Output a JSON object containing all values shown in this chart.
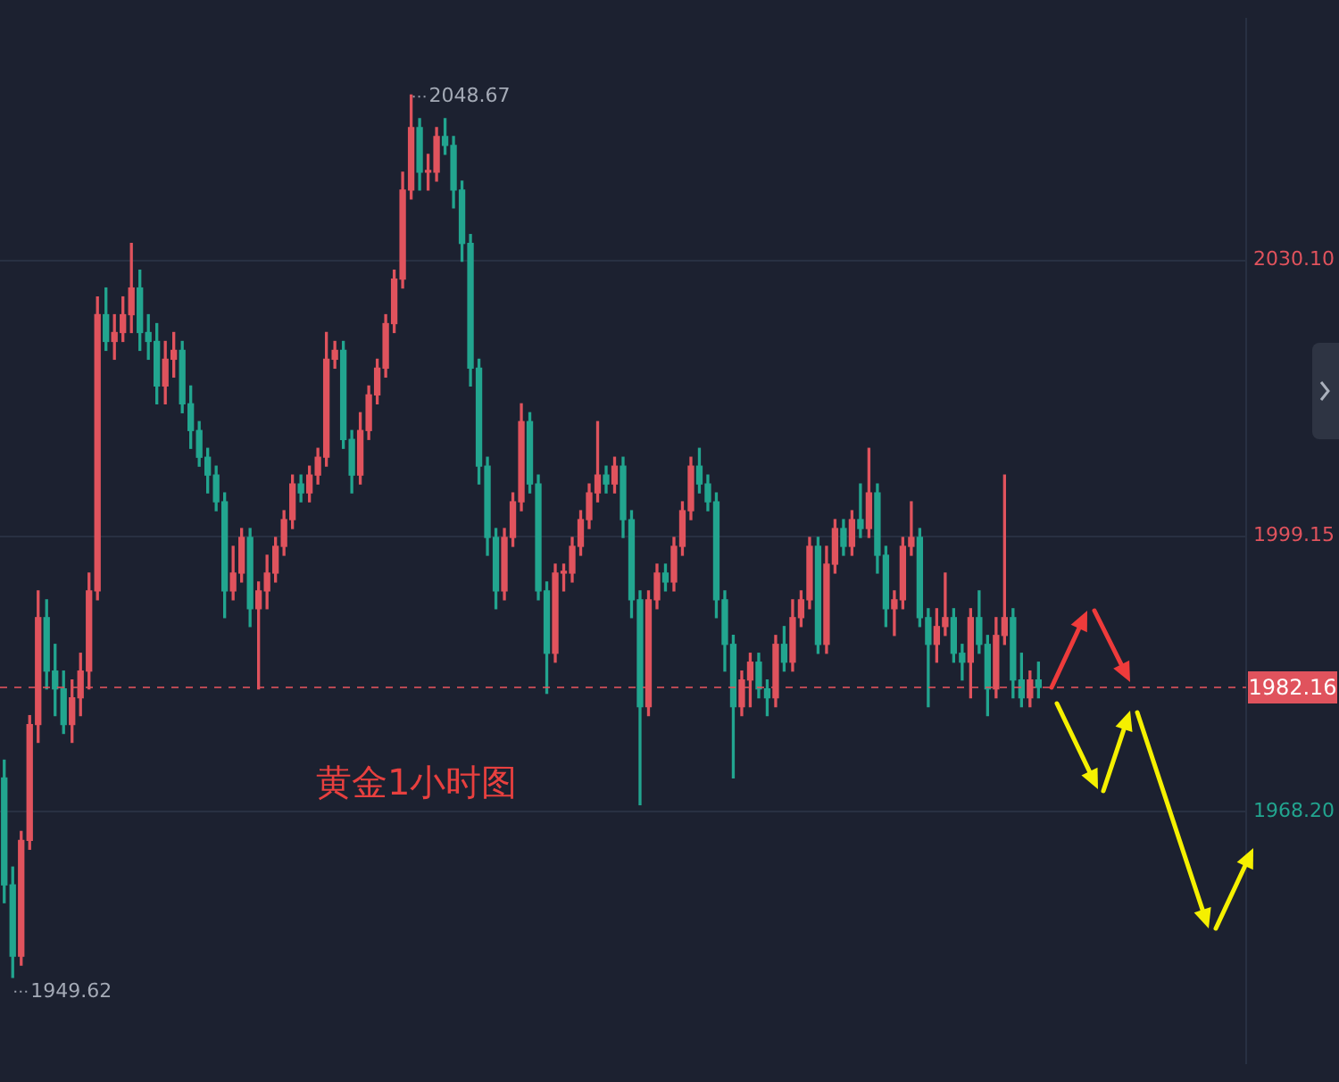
{
  "chart_data": {
    "type": "candlestick",
    "categories": [
      null,
      null,
      null,
      null,
      null,
      null,
      null,
      null,
      null,
      null,
      null,
      null,
      null,
      null,
      null,
      null,
      null,
      null,
      null,
      null,
      null,
      null,
      null,
      null,
      null,
      null,
      null,
      null,
      null,
      null,
      null,
      null,
      null,
      null,
      null,
      null,
      null,
      null,
      null,
      null,
      null,
      null,
      null,
      null,
      null,
      null,
      null,
      null,
      null,
      null,
      null,
      null,
      null,
      null,
      null,
      null,
      null,
      null,
      null,
      null,
      null,
      null,
      null,
      null,
      null,
      null,
      null,
      null,
      null,
      null,
      null,
      null,
      null,
      null,
      null,
      null,
      null,
      null,
      null,
      null,
      null,
      null,
      null,
      null,
      null,
      null,
      null,
      null,
      null,
      null,
      null,
      null,
      null,
      null,
      null,
      null,
      null,
      null,
      null,
      null,
      null,
      null,
      null,
      null,
      null,
      null,
      null,
      null,
      null,
      null,
      null,
      null,
      null,
      null,
      null,
      null,
      null,
      null,
      null,
      null,
      null,
      null,
      null,
      null,
      null,
      null,
      null,
      null,
      null,
      null,
      null,
      null,
      null,
      null,
      null,
      null,
      null,
      null,
      null,
      null,
      null,
      null,
      null,
      null,
      null,
      null,
      null
    ],
    "ohlc": [
      [
        1972,
        1974,
        1958,
        1960
      ],
      [
        1960,
        1962,
        1949.62,
        1952
      ],
      [
        1952,
        1966,
        1951,
        1965
      ],
      [
        1965,
        1979,
        1964,
        1978
      ],
      [
        1978,
        1993,
        1976,
        1990
      ],
      [
        1990,
        1992,
        1982,
        1984
      ],
      [
        1984,
        1987,
        1979,
        1982
      ],
      [
        1982,
        1984,
        1977,
        1978
      ],
      [
        1978,
        1983,
        1976,
        1981
      ],
      [
        1981,
        1986,
        1979,
        1984
      ],
      [
        1984,
        1995,
        1982,
        1993
      ],
      [
        1993,
        2026,
        1992,
        2024
      ],
      [
        2024,
        2027,
        2020,
        2021
      ],
      [
        2021,
        2024,
        2019,
        2022
      ],
      [
        2022,
        2026,
        2021,
        2024
      ],
      [
        2024,
        2032,
        2022,
        2027
      ],
      [
        2027,
        2029,
        2020,
        2022
      ],
      [
        2022,
        2024,
        2019,
        2021
      ],
      [
        2021,
        2023,
        2014,
        2016
      ],
      [
        2016,
        2021,
        2014,
        2019
      ],
      [
        2019,
        2022,
        2017,
        2020
      ],
      [
        2020,
        2021,
        2013,
        2014
      ],
      [
        2014,
        2016,
        2009,
        2011
      ],
      [
        2011,
        2012,
        2007,
        2008
      ],
      [
        2008,
        2009,
        2004,
        2006
      ],
      [
        2006,
        2007,
        2002,
        2003
      ],
      [
        2003,
        2004,
        1990,
        1993
      ],
      [
        1993,
        1998,
        1992,
        1995
      ],
      [
        1995,
        2000,
        1994,
        1999
      ],
      [
        1999,
        2000,
        1989,
        1991
      ],
      [
        1991,
        1994,
        1982,
        1993
      ],
      [
        1993,
        1997,
        1991,
        1995
      ],
      [
        1995,
        1999,
        1994,
        1998
      ],
      [
        1998,
        2002,
        1997,
        2001
      ],
      [
        2001,
        2006,
        2000,
        2005
      ],
      [
        2005,
        2006,
        2003,
        2004
      ],
      [
        2004,
        2007,
        2003,
        2006
      ],
      [
        2006,
        2009,
        2005,
        2008
      ],
      [
        2008,
        2022,
        2007,
        2019
      ],
      [
        2019,
        2021,
        2018,
        2020
      ],
      [
        2020,
        2021,
        2009,
        2010
      ],
      [
        2010,
        2011,
        2004,
        2006
      ],
      [
        2006,
        2013,
        2005,
        2011
      ],
      [
        2011,
        2016,
        2010,
        2015
      ],
      [
        2015,
        2019,
        2014,
        2018
      ],
      [
        2018,
        2024,
        2017,
        2023
      ],
      [
        2023,
        2029,
        2022,
        2028
      ],
      [
        2028,
        2040,
        2027,
        2038
      ],
      [
        2038,
        2048.67,
        2037,
        2045
      ],
      [
        2045,
        2046,
        2038,
        2040
      ],
      [
        2040,
        2042,
        2038,
        2040
      ],
      [
        2040,
        2045,
        2039,
        2044
      ],
      [
        2044,
        2046,
        2042,
        2043
      ],
      [
        2043,
        2044,
        2036,
        2038
      ],
      [
        2038,
        2039,
        2030,
        2032
      ],
      [
        2032,
        2033,
        2016,
        2018
      ],
      [
        2018,
        2019,
        2005,
        2007
      ],
      [
        2007,
        2008,
        1997,
        1999
      ],
      [
        1999,
        2000,
        1991,
        1993
      ],
      [
        1993,
        2000,
        1992,
        1999
      ],
      [
        1999,
        2004,
        1998,
        2003
      ],
      [
        2003,
        2014,
        2002,
        2012
      ],
      [
        2012,
        2013,
        2004,
        2005
      ],
      [
        2005,
        2006,
        1992,
        1993
      ],
      [
        1993,
        1994,
        1981.5,
        1986
      ],
      [
        1986,
        1996,
        1985,
        1995
      ],
      [
        1995,
        1996,
        1993,
        1995
      ],
      [
        1995,
        1999,
        1994,
        1998
      ],
      [
        1998,
        2002,
        1997,
        2001
      ],
      [
        2001,
        2005,
        2000,
        2004
      ],
      [
        2004,
        2012,
        2003,
        2006
      ],
      [
        2006,
        2007,
        2004,
        2005
      ],
      [
        2005,
        2008,
        2004,
        2007
      ],
      [
        2007,
        2008,
        1999,
        2001
      ],
      [
        2001,
        2002,
        1990,
        1992
      ],
      [
        1992,
        1993,
        1969,
        1980
      ],
      [
        1980,
        1993,
        1979,
        1992
      ],
      [
        1992,
        1996,
        1991,
        1995
      ],
      [
        1995,
        1996,
        1993,
        1994
      ],
      [
        1994,
        1999,
        1993,
        1998
      ],
      [
        1998,
        2003,
        1997,
        2002
      ],
      [
        2002,
        2008,
        2001,
        2007
      ],
      [
        2007,
        2009,
        2004,
        2005
      ],
      [
        2005,
        2006,
        2002,
        2003
      ],
      [
        2003,
        2004,
        1990,
        1992
      ],
      [
        1992,
        1993,
        1984,
        1987
      ],
      [
        1987,
        1988,
        1972,
        1980
      ],
      [
        1980,
        1984,
        1979,
        1983
      ],
      [
        1983,
        1986,
        1980,
        1985
      ],
      [
        1985,
        1986,
        1981,
        1982
      ],
      [
        1982,
        1983,
        1979,
        1981
      ],
      [
        1981,
        1988,
        1980,
        1987
      ],
      [
        1987,
        1989,
        1984,
        1985
      ],
      [
        1985,
        1992,
        1984,
        1990
      ],
      [
        1990,
        1993,
        1989,
        1992
      ],
      [
        1992,
        1999,
        1991,
        1998
      ],
      [
        1998,
        1999,
        1986,
        1987
      ],
      [
        1987,
        1998,
        1986,
        1996
      ],
      [
        1996,
        2001,
        1995,
        2000
      ],
      [
        2000,
        2001,
        1997,
        1998
      ],
      [
        1998,
        2002,
        1997,
        2001
      ],
      [
        2001,
        2005,
        1999,
        2000
      ],
      [
        2000,
        2009,
        1999,
        2004
      ],
      [
        2004,
        2005,
        1995,
        1997
      ],
      [
        1997,
        1998,
        1989,
        1991
      ],
      [
        1991,
        1993,
        1988,
        1992
      ],
      [
        1992,
        1999,
        1991,
        1998
      ],
      [
        1998,
        2003,
        1997,
        1999
      ],
      [
        1999,
        2000,
        1989,
        1990
      ],
      [
        1990,
        1991,
        1980,
        1987
      ],
      [
        1987,
        1991,
        1985,
        1989
      ],
      [
        1989,
        1995,
        1988,
        1990
      ],
      [
        1990,
        1991,
        1985,
        1986
      ],
      [
        1986,
        1987,
        1983,
        1985
      ],
      [
        1985,
        1991,
        1981,
        1990
      ],
      [
        1990,
        1993,
        1986,
        1987
      ],
      [
        1987,
        1988,
        1979,
        1982
      ],
      [
        1982,
        1990,
        1981,
        1988
      ],
      [
        1988,
        2006,
        1987,
        1990
      ],
      [
        1990,
        1991,
        1981,
        1983
      ],
      [
        1983,
        1986,
        1980,
        1981
      ],
      [
        1981,
        1984,
        1980,
        1983
      ],
      [
        1983,
        1985,
        1981,
        1982.16
      ],
      null,
      null,
      null,
      null,
      null,
      null,
      null,
      null,
      null,
      null,
      null,
      null,
      null,
      null,
      null,
      null,
      null,
      null,
      null,
      null,
      null,
      null,
      null,
      null
    ],
    "ylim": [
      1940,
      2057.2
    ],
    "yticks": [
      {
        "value": 1968.2,
        "label": "1968.20"
      },
      {
        "value": 1999.15,
        "label": "1999.15"
      },
      {
        "value": 2030.1,
        "label": "2030.10"
      }
    ],
    "grid": "y",
    "tick_labels": "y",
    "legend": false,
    "ref_lines": [
      {
        "axis": "y",
        "value": 1982.16,
        "label": "1982.16",
        "color": "#e0535d",
        "line_style": "dashed"
      }
    ],
    "annotations": [
      "2048.67",
      "1949.62",
      "黄金1小时图"
    ]
  }
}
